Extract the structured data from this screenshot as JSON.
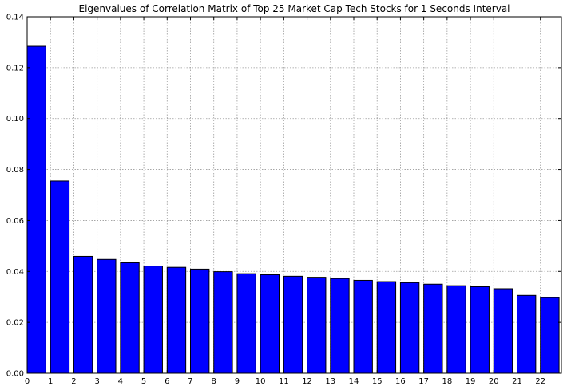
{
  "chart_data": {
    "type": "bar",
    "title": "Eigenvalues of Correlation Matrix of Top 25 Market Cap Tech Stocks for 1 Seconds Interval",
    "xlabel": "",
    "ylabel": "",
    "categories": [
      "0",
      "1",
      "2",
      "3",
      "4",
      "5",
      "6",
      "7",
      "8",
      "9",
      "10",
      "11",
      "12",
      "13",
      "14",
      "15",
      "16",
      "17",
      "18",
      "19",
      "20",
      "21",
      "22"
    ],
    "values": [
      0.1284,
      0.0755,
      0.0459,
      0.0447,
      0.0434,
      0.0421,
      0.0416,
      0.0409,
      0.0399,
      0.0391,
      0.0387,
      0.0381,
      0.0377,
      0.0372,
      0.0365,
      0.036,
      0.0356,
      0.035,
      0.0344,
      0.034,
      0.0332,
      0.0306,
      0.0297
    ],
    "ylim": [
      0,
      0.14
    ],
    "xlim": [
      0,
      22.9
    ],
    "yticks": [
      "0.00",
      "0.02",
      "0.04",
      "0.06",
      "0.08",
      "0.10",
      "0.12",
      "0.14"
    ],
    "bar_width": 0.8,
    "grid": true,
    "bar_color": "#0000ff",
    "edge_color": "#000000"
  }
}
